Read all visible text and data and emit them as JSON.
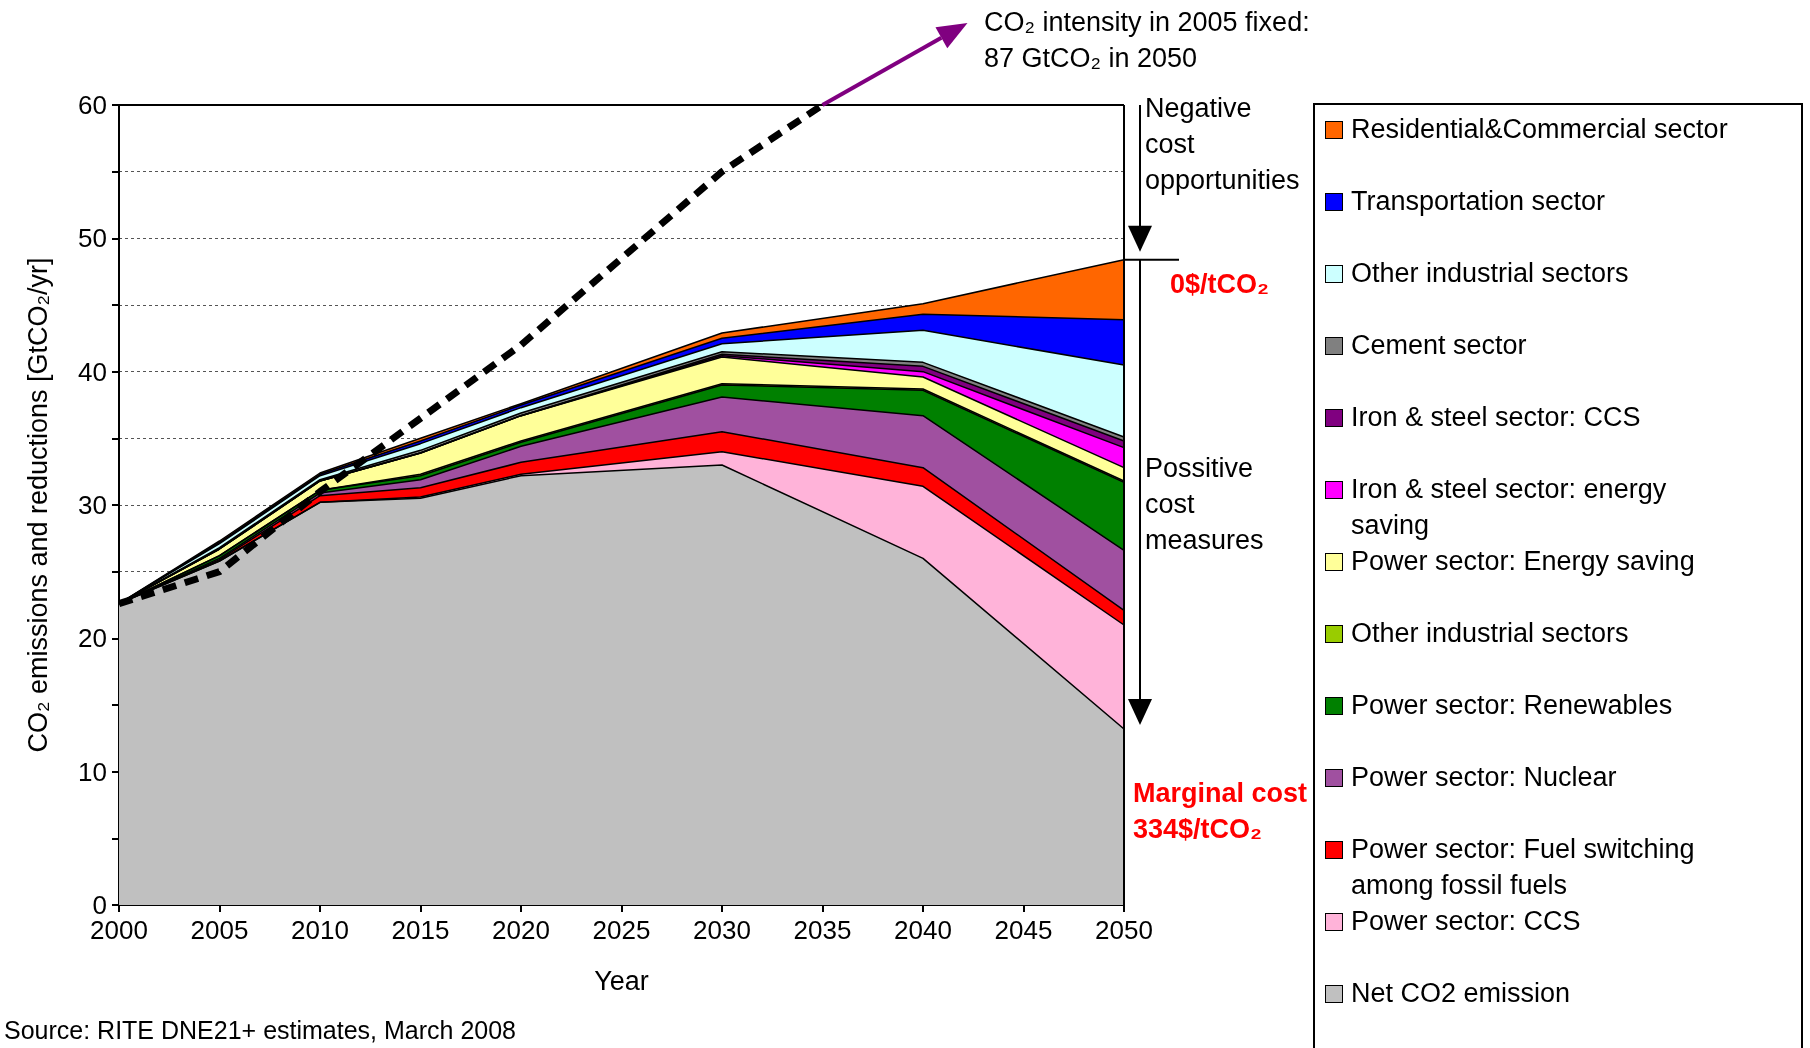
{
  "chart_data": {
    "type": "area",
    "stacked": true,
    "marker": "none",
    "grid": "y",
    "legend": "right",
    "xlabel": "Year",
    "ylabel": "CO₂ emissions and reductions [GtCO₂/yr]",
    "x": [
      2000,
      2005,
      2010,
      2015,
      2020,
      2030,
      2040,
      2050
    ],
    "xlim": [
      2000,
      2050
    ],
    "xticks": [
      2000,
      2005,
      2010,
      2015,
      2020,
      2025,
      2030,
      2035,
      2040,
      2045,
      2050
    ],
    "ylim": [
      0,
      60
    ],
    "yticks": [
      0,
      {
        "value": 5,
        "label": null
      },
      10,
      {
        "value": 15,
        "label": null
      },
      20,
      {
        "value": 25,
        "label": null
      },
      30,
      {
        "value": 35,
        "label": null
      },
      40,
      {
        "value": 45,
        "label": null
      },
      50,
      {
        "value": 55,
        "label": null
      },
      60
    ],
    "annotations": [
      "CO₂ intensity in 2005 fixed:\n87 GtCO₂ in 2050",
      "Negative\ncost\nopportunities",
      "0$/tCO₂",
      "Possitive\ncost\nmeasures",
      "Marginal cost\n334$/tCO₂",
      "Source: RITE DNE21+ estimates, March 2008"
    ],
    "series": [
      {
        "name": "Net CO2 emission",
        "color": "#c0c0c0",
        "values": [
          22.6,
          25.8,
          30.2,
          30.5,
          32.2,
          33.0,
          26.0,
          13.2
        ]
      },
      {
        "name": "Power sector: CCS",
        "color": "#ffb3d9",
        "values": [
          0,
          0,
          0,
          0.1,
          0.1,
          1.0,
          5.4,
          7.8
        ]
      },
      {
        "name": "Power sector: Fuel switching among fossil fuels",
        "color": "#ff0000",
        "values": [
          0,
          0.1,
          0.5,
          0.7,
          0.9,
          1.5,
          1.4,
          1.1
        ]
      },
      {
        "name": "Power sector: Nuclear",
        "color": "#a050a0",
        "values": [
          0,
          0.1,
          0.2,
          0.6,
          1.2,
          2.6,
          3.9,
          4.5
        ]
      },
      {
        "name": "Power sector: Renewables",
        "color": "#008000",
        "values": [
          0,
          0.2,
          0.2,
          0.3,
          0.3,
          0.9,
          1.9,
          5.1
        ]
      },
      {
        "name": "Other industrial sectors",
        "color": "#99cc00",
        "values": [
          0,
          0,
          0,
          0.1,
          0.1,
          0.1,
          0.1,
          0.1
        ]
      },
      {
        "name": "Power sector: Energy saving",
        "color": "#ffff99",
        "values": [
          0,
          0.5,
          0.7,
          1.6,
          1.9,
          2.0,
          0.9,
          1.0
        ]
      },
      {
        "name": "Iron & steel sector: energy saving",
        "color": "#ff00ff",
        "values": [
          0,
          0,
          0,
          0,
          0,
          0.1,
          0.4,
          1.5
        ]
      },
      {
        "name": "Iron & steel sector: CCS",
        "color": "#800080",
        "values": [
          0,
          0,
          0,
          0,
          0,
          0.1,
          0.4,
          0.5
        ]
      },
      {
        "name": "Cement sector",
        "color": "#808080",
        "values": [
          0,
          0.1,
          0.1,
          0.2,
          0.2,
          0.2,
          0.3,
          0.3
        ]
      },
      {
        "name": "Other industrial sectors",
        "color": "#ccffff",
        "values": [
          0,
          0.3,
          0.3,
          0.5,
          0.4,
          0.6,
          2.4,
          5.4
        ]
      },
      {
        "name": "Transportation sector",
        "color": "#0000ff",
        "values": [
          0,
          0.1,
          0.1,
          0.2,
          0.2,
          0.4,
          1.2,
          3.4
        ]
      },
      {
        "name": "Residential&Commercial sector",
        "color": "#ff6600",
        "values": [
          0,
          0.1,
          0.1,
          0.2,
          0.1,
          0.4,
          0.8,
          4.5
        ]
      },
      {
        "type": "line",
        "line_style": "dashed",
        "color": "#000000",
        "x": [
          2000,
          2005,
          2010,
          2015,
          2020,
          2025,
          2030,
          2035
        ],
        "values": [
          22.6,
          25.0,
          31.0,
          36.5,
          42.0,
          48.5,
          55.0,
          60.0
        ]
      }
    ]
  }
}
